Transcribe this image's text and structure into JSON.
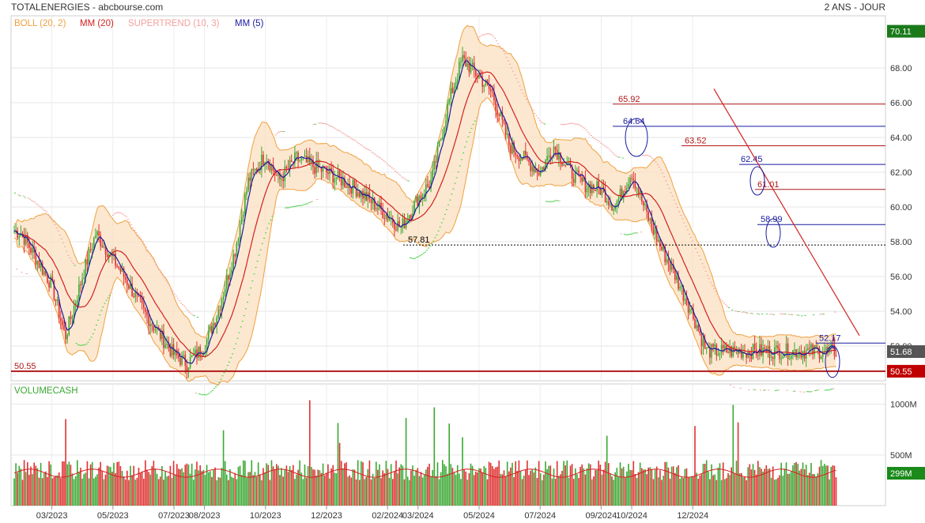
{
  "header": {
    "title": "TOTALENERGIES - abcbourse.com",
    "period": "2 ANS - JOUR"
  },
  "legend": [
    {
      "label": "BOLL (20, 2)",
      "color": "#f0a040"
    },
    {
      "label": "MM (20)",
      "color": "#d42020"
    },
    {
      "label": "SUPERTREND (10, 3)",
      "color": "#f4a0a0"
    },
    {
      "label": "MM (5)",
      "color": "#1a1aa0"
    }
  ],
  "volume_label": "VOLUMECASH",
  "colors": {
    "up": "#3aa832",
    "down": "#e03030",
    "boll": "#f0a040",
    "boll_fill": "#fbe0c0",
    "mm20": "#d42020",
    "mm5": "#1a1aa0",
    "supertrend_up": "#40d040",
    "supertrend_down": "#f4a0a0",
    "last_price_badge": "#555555",
    "level_badge": "#c00000",
    "top_badge": "#1a7a1a",
    "volume_badge": "#1a8a1a"
  },
  "chart_data": [
    {
      "type": "candlestick",
      "title": "TOTALENERGIES",
      "x": [
        "03/2023",
        "05/2023",
        "07/2023",
        "08/2023",
        "10/2023",
        "12/2023",
        "02/2024",
        "03/2024",
        "05/2024",
        "07/2024",
        "09/2024",
        "10/2024",
        "12/2024"
      ],
      "y_ticks": [
        "68.00",
        "66.00",
        "64.00",
        "62.00",
        "60.00",
        "58.00",
        "56.00",
        "54.00",
        "52.00"
      ],
      "ylim": [
        50.0,
        71.0
      ],
      "price_path": [
        [
          "01/2023",
          59.0
        ],
        [
          "02/2023",
          58.5
        ],
        [
          "03/2023",
          55.5
        ],
        [
          "03/2023",
          52.5
        ],
        [
          "04/2023",
          56.0
        ],
        [
          "04/2023",
          58.5
        ],
        [
          "05/2023",
          57.0
        ],
        [
          "05/2023",
          55.8
        ],
        [
          "06/2023",
          54.0
        ],
        [
          "07/2023",
          51.5
        ],
        [
          "07/2023",
          51.0
        ],
        [
          "08/2023",
          52.0
        ],
        [
          "08/2023",
          54.0
        ],
        [
          "09/2023",
          57.5
        ],
        [
          "09/2023",
          61.5
        ],
        [
          "10/2023",
          63.0
        ],
        [
          "10/2023",
          61.5
        ],
        [
          "11/2023",
          62.8
        ],
        [
          "12/2023",
          62.0
        ],
        [
          "12/2023",
          61.6
        ],
        [
          "01/2024",
          61.0
        ],
        [
          "02/2024",
          59.5
        ],
        [
          "02/2024",
          58.8
        ],
        [
          "03/2024",
          60.5
        ],
        [
          "03/2024",
          61.5
        ],
        [
          "04/2024",
          66.0
        ],
        [
          "04/2024",
          68.5
        ],
        [
          "05/2024",
          67.5
        ],
        [
          "05/2024",
          66.5
        ],
        [
          "06/2024",
          63.5
        ],
        [
          "07/2024",
          62.0
        ],
        [
          "07/2024",
          63.5
        ],
        [
          "08/2024",
          62.0
        ],
        [
          "08/2024",
          61.3
        ],
        [
          "09/2024",
          61.0
        ],
        [
          "09/2024",
          60.0
        ],
        [
          "10/2024",
          62.0
        ],
        [
          "10/2024",
          59.8
        ],
        [
          "11/2024",
          57.5
        ],
        [
          "11/2024",
          56.0
        ],
        [
          "12/2024",
          53.8
        ],
        [
          "12/2024",
          51.7
        ]
      ],
      "last_price": "51.68",
      "top_value": "70.11",
      "levels": [
        {
          "label": "65.92",
          "value": 65.92,
          "color": "#b01818"
        },
        {
          "label": "64.64",
          "value": 64.64,
          "color": "#1a1aa0"
        },
        {
          "label": "63.52",
          "value": 63.52,
          "color": "#b01818"
        },
        {
          "label": "62.45",
          "value": 62.45,
          "color": "#1a1aa0"
        },
        {
          "label": "61.01",
          "value": 61.01,
          "color": "#b01818"
        },
        {
          "label": "58.99",
          "value": 58.99,
          "color": "#1a1aa0"
        },
        {
          "label": "57.81",
          "value": 57.81,
          "color": "#000000"
        },
        {
          "label": "52.17",
          "value": 52.17,
          "color": "#1a1aa0"
        },
        {
          "label": "50.55",
          "value": 50.55,
          "color": "#b01818"
        }
      ]
    },
    {
      "type": "bar",
      "title": "VOLUMECASH",
      "y_ticks": [
        "1000M",
        "500M"
      ],
      "last_value": "299M"
    }
  ]
}
